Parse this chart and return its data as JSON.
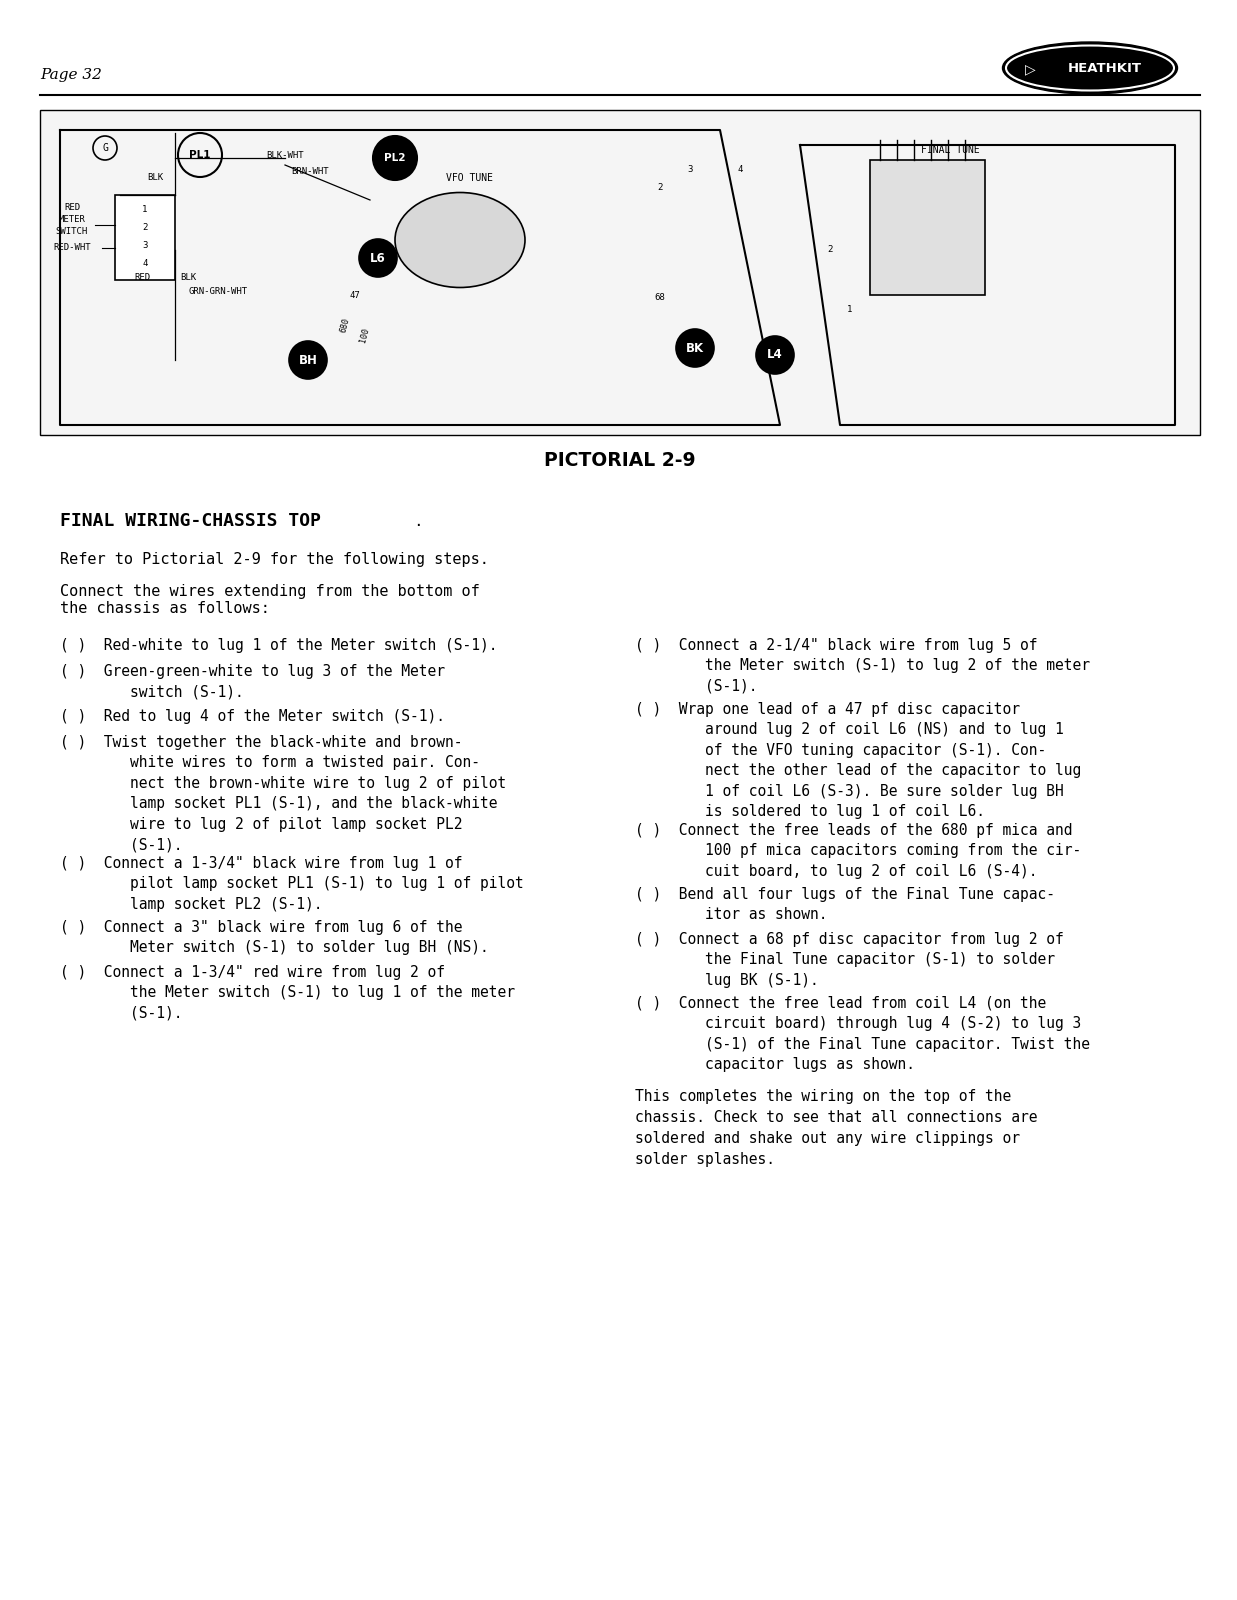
{
  "page_number": "Page 32",
  "bg_color": "#ffffff",
  "text_color": "#000000",
  "title_section": "FINAL WIRING-CHASSIS TOP",
  "pictorial_label": "PICTORIAL 2-9",
  "intro_para": "Refer to Pictorial 2-9 for the following steps.",
  "connect_intro": "Connect the wires extending from the bottom of\nthe chassis as follows:",
  "left_item_texts": [
    "( )  Red-white to lug 1 of the Meter switch (S-1).",
    "( )  Green-green-white to lug 3 of the Meter\n        switch (S-1).",
    "( )  Red to lug 4 of the Meter switch (S-1).",
    "( )  Twist together the black-white and brown-\n        white wires to form a twisted pair. Con-\n        nect the brown-white wire to lug 2 of pilot\n        lamp socket PL1 (S-1), and the black-white\n        wire to lug 2 of pilot lamp socket PL2\n        (S-1).",
    "( )  Connect a 1-3/4\" black wire from lug 1 of\n        pilot lamp socket PL1 (S-1) to lug 1 of pilot\n        lamp socket PL2 (S-1).",
    "( )  Connect a 3\" black wire from lug 6 of the\n        Meter switch (S-1) to solder lug BH (NS).",
    "( )  Connect a 1-3/4\" red wire from lug 2 of\n        the Meter switch (S-1) to lug 1 of the meter\n        (S-1)."
  ],
  "right_item_texts": [
    "( )  Connect a 2-1/4\" black wire from lug 5 of\n        the Meter switch (S-1) to lug 2 of the meter\n        (S-1).",
    "( )  Wrap one lead of a 47 pf disc capacitor\n        around lug 2 of coil L6 (NS) and to lug 1\n        of the VFO tuning capacitor (S-1). Con-\n        nect the other lead of the capacitor to lug\n        1 of coil L6 (S-3). Be sure solder lug BH\n        is soldered to lug 1 of coil L6.",
    "( )  Connect the free leads of the 680 pf mica and\n        100 pf mica capacitors coming from the cir-\n        cuit board, to lug 2 of coil L6 (S-4).",
    "( )  Bend all four lugs of the Final Tune capac-\n        itor as shown.",
    "( )  Connect a 68 pf disc capacitor from lug 2 of\n        the Final Tune capacitor (S-1) to solder\n        lug BK (S-1).",
    "( )  Connect the free lead from coil L4 (on the\n        circuit board) through lug 4 (S-2) to lug 3\n        (S-1) of the Final Tune capacitor. Twist the\n        capacitor lugs as shown."
  ],
  "closing_para": "This completes the wiring on the top of the\nchassis. Check to see that all connections are\nsoldered and shake out any wire clippings or\nsolder splashes."
}
